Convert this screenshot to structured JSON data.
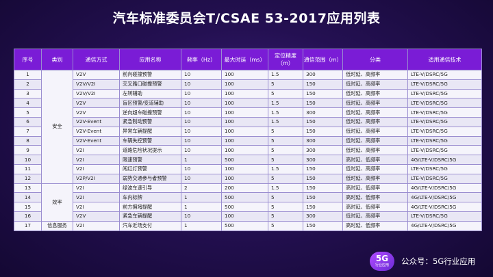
{
  "title": "汽车标准委员会T/CSAE 53-2017应用列表",
  "headers": [
    "序号",
    "类别",
    "通信方式",
    "应用名称",
    "频率（Hz）",
    "最大时延（ms）",
    "定位精度（m）",
    "通信范围（m）",
    "分类",
    "适用通信技术"
  ],
  "groups": [
    {
      "label": "安全",
      "start": 0,
      "span": 12
    },
    {
      "label": "效率",
      "start": 12,
      "span": 4
    },
    {
      "label": "信息服务",
      "start": 16,
      "span": 1
    }
  ],
  "rows": [
    [
      "1",
      "V2V",
      "前向碰撞预警",
      "10",
      "100",
      "1.5",
      "300",
      "低时延、高频率",
      "LTE-V/DSRC/5G"
    ],
    [
      "2",
      "V2V/V2I",
      "交叉路口碰撞预警",
      "10",
      "100",
      "5",
      "150",
      "低时延、高频率",
      "LTE-V/DSRC/5G"
    ],
    [
      "3",
      "V2V/V2I",
      "左转辅助",
      "10",
      "100",
      "5",
      "150",
      "低时延、高频率",
      "LTE-V/DSRC/5G"
    ],
    [
      "4",
      "V2V",
      "盲区预警/变道辅助",
      "10",
      "100",
      "1.5",
      "150",
      "低时延、高频率",
      "LTE-V/DSRC/5G"
    ],
    [
      "5",
      "V2V",
      "逆向超车碰撞预警",
      "10",
      "100",
      "1.5",
      "300",
      "低时延、高频率",
      "LTE-V/DSRC/5G"
    ],
    [
      "6",
      "V2V-Event",
      "紧急制动预警",
      "10",
      "100",
      "1.5",
      "150",
      "低时延、高频率",
      "LTE-V/DSRC/5G"
    ],
    [
      "7",
      "V2V-Event",
      "异常车辆提醒",
      "10",
      "100",
      "5",
      "150",
      "低时延、高频率",
      "LTE-V/DSRC/5G"
    ],
    [
      "8",
      "V2V-Event",
      "车辆失控预警",
      "10",
      "100",
      "5",
      "300",
      "低时延、高频率",
      "LTE-V/DSRC/5G"
    ],
    [
      "9",
      "V2I",
      "道路危险状况提示",
      "10",
      "100",
      "5",
      "300",
      "低时延、高频率",
      "LTE-V/DSRC/5G"
    ],
    [
      "10",
      "V2I",
      "限速预警",
      "1",
      "500",
      "5",
      "300",
      "高时延、低频率",
      "4G/LTE-V/DSRC/5G"
    ],
    [
      "11",
      "V2I",
      "闯红灯预警",
      "10",
      "100",
      "1.5",
      "150",
      "低时延、高频率",
      "LTE-V/DSRC/5G"
    ],
    [
      "12",
      "V2P/V2I",
      "弱势交通参与者预警",
      "10",
      "100",
      "5",
      "150",
      "低时延、高频率",
      "LTE-V/DSRC/5G"
    ],
    [
      "13",
      "V2I",
      "绿波车速引导",
      "2",
      "200",
      "1.5",
      "150",
      "高时延、低频率",
      "4G/LTE-V/DSRC/5G"
    ],
    [
      "14",
      "V2I",
      "车内标牌",
      "1",
      "500",
      "5",
      "150",
      "高时延、低频率",
      "4G/LTE-V/DSRC/5G"
    ],
    [
      "15",
      "V2I",
      "前方拥堵提醒",
      "1",
      "500",
      "5",
      "150",
      "高时延、低频率",
      "4G/LTE-V/DSRC/5G"
    ],
    [
      "16",
      "V2V",
      "紧急车辆提醒",
      "10",
      "100",
      "5",
      "300",
      "低时延、高频率",
      "LTE-V/DSRC/5G"
    ],
    [
      "17",
      "V2I",
      "汽车近场支付",
      "1",
      "500",
      "5",
      "150",
      "高时延、低频率",
      "4G/LTE-V/DSRC/5G"
    ]
  ],
  "footer": {
    "logo_big": "5G",
    "logo_small": "行业应用",
    "text": "公众号：5G行业应用"
  }
}
